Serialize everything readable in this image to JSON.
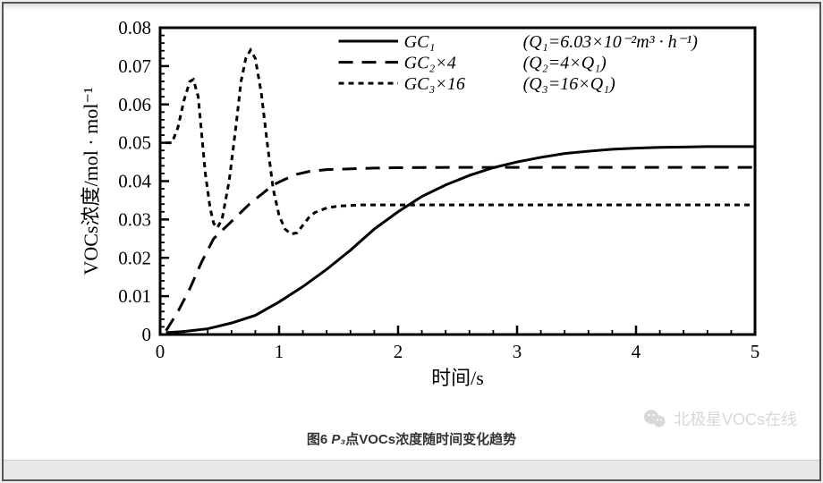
{
  "chart": {
    "type": "line",
    "background_color": "#ffffff",
    "axis_color": "#000000",
    "text_color": "#000000",
    "xlabel": "时间/s",
    "ylabel": "VOCs浓度/mol · mol⁻¹",
    "label_fontsize": 22,
    "tick_fontsize": 21,
    "xlim": [
      0,
      5
    ],
    "ylim": [
      0,
      0.08
    ],
    "xticks": [
      0,
      1,
      2,
      3,
      4,
      5
    ],
    "yticks": [
      0,
      0.01,
      0.02,
      0.03,
      0.04,
      0.05,
      0.06,
      0.07,
      0.08
    ],
    "axis_linewidth": 3,
    "minor_tick_count_x": 4,
    "minor_tick_count_y": 4,
    "series": [
      {
        "name": "GC1",
        "legend_main": "GC₁",
        "legend_note": "(Q₁=6.03×10⁻²m³ · h⁻¹)",
        "style": "solid",
        "linewidth": 3,
        "color": "#000000",
        "points": [
          [
            0.05,
            0.0005
          ],
          [
            0.2,
            0.0008
          ],
          [
            0.4,
            0.0015
          ],
          [
            0.6,
            0.003
          ],
          [
            0.8,
            0.005
          ],
          [
            1.0,
            0.0085
          ],
          [
            1.2,
            0.0125
          ],
          [
            1.4,
            0.017
          ],
          [
            1.6,
            0.022
          ],
          [
            1.8,
            0.0275
          ],
          [
            2.0,
            0.032
          ],
          [
            2.2,
            0.036
          ],
          [
            2.4,
            0.039
          ],
          [
            2.6,
            0.0415
          ],
          [
            2.8,
            0.0435
          ],
          [
            3.0,
            0.045
          ],
          [
            3.2,
            0.0462
          ],
          [
            3.4,
            0.0472
          ],
          [
            3.6,
            0.0478
          ],
          [
            3.8,
            0.0483
          ],
          [
            4.0,
            0.0486
          ],
          [
            4.2,
            0.0488
          ],
          [
            4.4,
            0.0489
          ],
          [
            4.6,
            0.049
          ],
          [
            4.8,
            0.049
          ],
          [
            5.0,
            0.049
          ]
        ]
      },
      {
        "name": "GC2x4",
        "legend_main": "GC₂×4",
        "legend_note": "(Q₂=4×Q₁)",
        "style": "longdash",
        "linewidth": 3,
        "color": "#000000",
        "points": [
          [
            0.05,
            0.001
          ],
          [
            0.15,
            0.006
          ],
          [
            0.25,
            0.012
          ],
          [
            0.35,
            0.019
          ],
          [
            0.45,
            0.025
          ],
          [
            0.55,
            0.028
          ],
          [
            0.65,
            0.031
          ],
          [
            0.75,
            0.034
          ],
          [
            0.85,
            0.0365
          ],
          [
            0.95,
            0.039
          ],
          [
            1.05,
            0.0405
          ],
          [
            1.15,
            0.0418
          ],
          [
            1.25,
            0.0425
          ],
          [
            1.4,
            0.043
          ],
          [
            1.6,
            0.0432
          ],
          [
            1.8,
            0.0434
          ],
          [
            2.0,
            0.0435
          ],
          [
            2.5,
            0.0436
          ],
          [
            3.0,
            0.0436
          ],
          [
            3.5,
            0.0436
          ],
          [
            4.0,
            0.0436
          ],
          [
            4.5,
            0.0436
          ],
          [
            5.0,
            0.0436
          ]
        ]
      },
      {
        "name": "GC3x16",
        "legend_main": "GC₃×16",
        "legend_note": "(Q₃=16×Q₁)",
        "style": "shortdash",
        "linewidth": 3,
        "color": "#000000",
        "points": [
          [
            0.05,
            0.05
          ],
          [
            0.1,
            0.05
          ],
          [
            0.15,
            0.054
          ],
          [
            0.2,
            0.061
          ],
          [
            0.25,
            0.066
          ],
          [
            0.28,
            0.0665
          ],
          [
            0.32,
            0.062
          ],
          [
            0.35,
            0.052
          ],
          [
            0.38,
            0.042
          ],
          [
            0.42,
            0.033
          ],
          [
            0.45,
            0.029
          ],
          [
            0.48,
            0.0278
          ],
          [
            0.52,
            0.03
          ],
          [
            0.58,
            0.04
          ],
          [
            0.64,
            0.055
          ],
          [
            0.68,
            0.066
          ],
          [
            0.72,
            0.072
          ],
          [
            0.76,
            0.0742
          ],
          [
            0.8,
            0.072
          ],
          [
            0.85,
            0.063
          ],
          [
            0.9,
            0.05
          ],
          [
            0.95,
            0.038
          ],
          [
            1.0,
            0.031
          ],
          [
            1.05,
            0.0275
          ],
          [
            1.1,
            0.0262
          ],
          [
            1.15,
            0.0265
          ],
          [
            1.2,
            0.0285
          ],
          [
            1.25,
            0.0305
          ],
          [
            1.3,
            0.0318
          ],
          [
            1.4,
            0.033
          ],
          [
            1.5,
            0.0335
          ],
          [
            1.7,
            0.0338
          ],
          [
            2.0,
            0.0338
          ],
          [
            2.5,
            0.0338
          ],
          [
            3.0,
            0.0338
          ],
          [
            3.5,
            0.0338
          ],
          [
            4.0,
            0.0338
          ],
          [
            4.5,
            0.0338
          ],
          [
            5.0,
            0.0338
          ]
        ]
      }
    ],
    "legend_x_col1": 2.05,
    "legend_x_col2": 3.05,
    "legend_y_start": 0.0765,
    "legend_y_step": 0.0055,
    "legend_line_x0": 1.5,
    "legend_line_x1": 2.0,
    "legend_fontsize": 20
  },
  "caption": {
    "prefix": "图6  ",
    "point": "P₃",
    "rest": "点VOCs浓度随时间变化趋势"
  },
  "watermark": {
    "text": "北极星VOCs在线"
  }
}
